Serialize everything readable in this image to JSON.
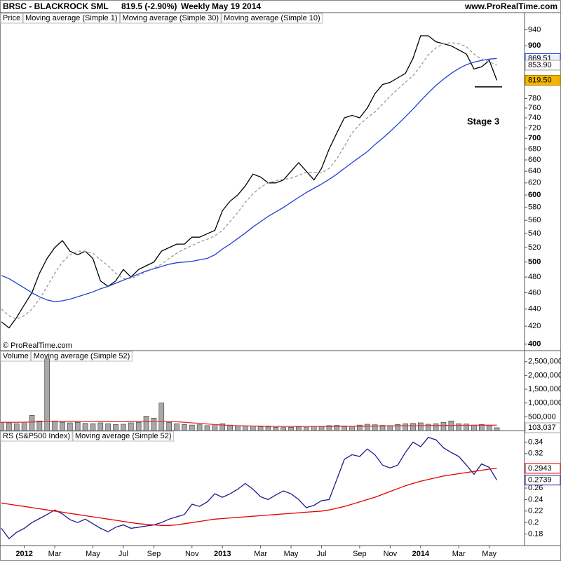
{
  "chart_data": [
    {
      "type": "line",
      "title": "BRSC - BLACKROCK SML",
      "quote": "819.5 (-2.90%)",
      "period": "Weekly",
      "date": "May 19 2014",
      "source": "www.ProRealTime.com",
      "watermark": "© ProRealTime.com",
      "legend_label": "Price",
      "annotation": "Stage 3",
      "support_level": 805,
      "support_color": "#000000",
      "log_scale": true,
      "ylim": [
        393,
        985
      ],
      "yticks": [
        400,
        420,
        440,
        460,
        480,
        500,
        520,
        540,
        560,
        580,
        600,
        620,
        640,
        660,
        680,
        700,
        720,
        740,
        760,
        780,
        900,
        940
      ],
      "series": [
        {
          "name": "Moving average (Simple 1)",
          "color": "#000000",
          "last_label": "819.50",
          "label_fill": "#f5b400",
          "values": [
            425,
            418,
            430,
            445,
            460,
            485,
            505,
            520,
            530,
            515,
            510,
            515,
            505,
            475,
            468,
            475,
            490,
            480,
            490,
            495,
            500,
            515,
            520,
            525,
            525,
            535,
            535,
            540,
            545,
            575,
            590,
            600,
            615,
            635,
            630,
            620,
            620,
            625,
            640,
            655,
            640,
            625,
            645,
            680,
            710,
            740,
            745,
            740,
            760,
            790,
            810,
            815,
            825,
            835,
            870,
            925,
            925,
            910,
            905,
            900,
            890,
            880,
            845,
            850,
            865,
            819.5
          ]
        },
        {
          "name": "Moving average (Simple 30)",
          "color": "#1f3fd8",
          "last_label": "869.51",
          "label_fill": "#eef2ff",
          "values": [
            482,
            478,
            472,
            466,
            460,
            455,
            451,
            449,
            450,
            452,
            455,
            458,
            461,
            465,
            468,
            472,
            476,
            480,
            484,
            488,
            491,
            494,
            497,
            499,
            500,
            501,
            503,
            505,
            510,
            518,
            525,
            533,
            541,
            550,
            558,
            566,
            573,
            580,
            588,
            596,
            604,
            611,
            618,
            626,
            635,
            645,
            655,
            665,
            675,
            688,
            700,
            713,
            727,
            742,
            758,
            775,
            792,
            808,
            822,
            835,
            846,
            855,
            861,
            865,
            868,
            869.51
          ]
        },
        {
          "name": "Moving average (Simple 10)",
          "color": "#9a9a9a",
          "dash": true,
          "last_label": "853.90",
          "label_fill": "#ffffff",
          "values": [
            440,
            432,
            428,
            432,
            440,
            452,
            468,
            485,
            500,
            510,
            515,
            515,
            512,
            503,
            495,
            485,
            478,
            478,
            482,
            487,
            492,
            497,
            505,
            512,
            518,
            523,
            528,
            532,
            537,
            545,
            558,
            572,
            588,
            602,
            613,
            620,
            624,
            626,
            628,
            633,
            638,
            638,
            637,
            645,
            662,
            685,
            710,
            727,
            740,
            752,
            768,
            785,
            800,
            815,
            830,
            852,
            878,
            895,
            905,
            908,
            905,
            898,
            880,
            868,
            862,
            853.9
          ]
        }
      ]
    },
    {
      "type": "bar",
      "ylim": [
        0,
        2900000
      ],
      "yticks": [
        {
          "value": 500000,
          "label": "500,000"
        },
        {
          "value": 1000000,
          "label": "1,000,000"
        },
        {
          "value": 1500000,
          "label": "1,500,000"
        },
        {
          "value": 2000000,
          "label": "2,000,000"
        },
        {
          "value": 2500000,
          "label": "2,500,000"
        }
      ],
      "series": [
        {
          "name": "Volume",
          "type": "bar",
          "color": "#a8a8a8",
          "last_label": "103,037",
          "label_fill": "#ffffff",
          "values": [
            300000,
            280000,
            250000,
            300000,
            550000,
            350000,
            2600000,
            350000,
            300000,
            280000,
            300000,
            260000,
            250000,
            280000,
            250000,
            220000,
            230000,
            280000,
            300000,
            520000,
            450000,
            1000000,
            300000,
            250000,
            220000,
            200000,
            210000,
            180000,
            220000,
            250000,
            200000,
            180000,
            160000,
            170000,
            140000,
            130000,
            120000,
            110000,
            120000,
            130000,
            110000,
            150000,
            160000,
            180000,
            190000,
            170000,
            160000,
            200000,
            230000,
            210000,
            190000,
            180000,
            220000,
            250000,
            260000,
            280000,
            230000,
            250000,
            300000,
            350000,
            250000,
            240000,
            200000,
            220000,
            180000,
            103037
          ]
        },
        {
          "name": "Moving average (Simple 52)",
          "type": "line",
          "color": "#e03030",
          "values": [
            300000,
            300000,
            300000,
            305000,
            310000,
            320000,
            330000,
            335000,
            335000,
            335000,
            335000,
            330000,
            330000,
            325000,
            325000,
            320000,
            320000,
            325000,
            330000,
            335000,
            340000,
            340000,
            330000,
            320000,
            300000,
            280000,
            260000,
            240000,
            220000,
            200000,
            185000,
            175000,
            170000,
            165000,
            160000,
            155000,
            150000,
            150000,
            150000,
            150000,
            150000,
            150000,
            150000,
            150000,
            150000,
            152000,
            155000,
            158000,
            160000,
            162000,
            165000,
            168000,
            170000,
            172000,
            175000,
            178000,
            180000,
            182000,
            185000,
            188000,
            190000,
            192000,
            194000,
            195000,
            195000,
            195000
          ]
        }
      ]
    },
    {
      "type": "line",
      "ylim": [
        0.16,
        0.36
      ],
      "yticks": [
        0.18,
        0.2,
        0.22,
        0.24,
        0.26,
        0.32,
        0.34
      ],
      "categories": [
        null,
        null,
        null,
        "2012",
        null,
        null,
        null,
        "Mar",
        null,
        null,
        null,
        null,
        "May",
        null,
        null,
        null,
        "Jul",
        null,
        null,
        null,
        "Sep",
        null,
        null,
        null,
        null,
        "Nov",
        null,
        null,
        null,
        "2013",
        null,
        null,
        null,
        null,
        "Mar",
        null,
        null,
        null,
        "May",
        null,
        null,
        null,
        "Jul",
        null,
        null,
        null,
        null,
        "Sep",
        null,
        null,
        null,
        "Nov",
        null,
        null,
        null,
        "2014",
        null,
        null,
        null,
        null,
        "Mar",
        null,
        null,
        null,
        "May",
        null
      ],
      "series": [
        {
          "name": "RS (S&P500 Index)",
          "color": "#1a1a8c",
          "last_label": "0.2739",
          "label_fill": "#ffffff",
          "values": [
            0.19,
            0.172,
            0.183,
            0.19,
            0.2,
            0.207,
            0.214,
            0.222,
            0.215,
            0.205,
            0.2,
            0.206,
            0.198,
            0.19,
            0.184,
            0.192,
            0.196,
            0.19,
            0.192,
            0.194,
            0.196,
            0.2,
            0.206,
            0.21,
            0.214,
            0.232,
            0.228,
            0.236,
            0.25,
            0.244,
            0.25,
            0.258,
            0.268,
            0.258,
            0.245,
            0.24,
            0.248,
            0.255,
            0.25,
            0.24,
            0.226,
            0.23,
            0.238,
            0.24,
            0.275,
            0.31,
            0.318,
            0.315,
            0.328,
            0.318,
            0.3,
            0.295,
            0.3,
            0.322,
            0.34,
            0.332,
            0.348,
            0.344,
            0.33,
            0.322,
            0.315,
            0.3,
            0.284,
            0.302,
            0.296,
            0.2739
          ]
        },
        {
          "name": "Moving average (Simple 52)",
          "color": "#e00000",
          "last_label": "0.2943",
          "label_fill": "#ffffff",
          "values": [
            0.234,
            0.232,
            0.23,
            0.228,
            0.226,
            0.224,
            0.222,
            0.22,
            0.218,
            0.216,
            0.214,
            0.212,
            0.21,
            0.208,
            0.206,
            0.204,
            0.202,
            0.2,
            0.198,
            0.197,
            0.196,
            0.195,
            0.195,
            0.196,
            0.198,
            0.2,
            0.202,
            0.204,
            0.206,
            0.207,
            0.208,
            0.209,
            0.21,
            0.211,
            0.212,
            0.213,
            0.214,
            0.215,
            0.216,
            0.217,
            0.218,
            0.219,
            0.22,
            0.222,
            0.225,
            0.228,
            0.232,
            0.236,
            0.24,
            0.244,
            0.249,
            0.254,
            0.259,
            0.264,
            0.268,
            0.272,
            0.275,
            0.278,
            0.281,
            0.283,
            0.285,
            0.287,
            0.289,
            0.291,
            0.293,
            0.2943
          ]
        }
      ]
    }
  ]
}
